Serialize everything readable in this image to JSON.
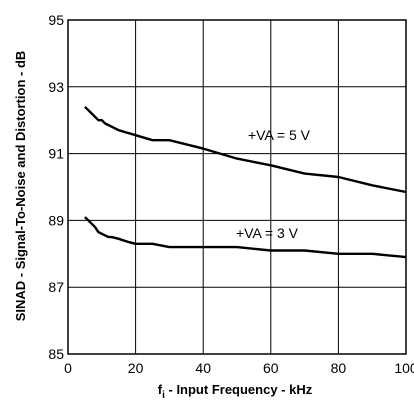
{
  "chart_data": {
    "type": "line",
    "xlabel": {
      "prefix": "f",
      "subscript": "i",
      "suffix": " - Input Frequency - kHz"
    },
    "ylabel": "SINAD - Signal-To-Noise and Distortion - dB",
    "xlim": [
      0,
      100
    ],
    "ylim": [
      85,
      95
    ],
    "x_ticks": [
      0,
      20,
      40,
      60,
      80,
      100
    ],
    "y_ticks": [
      85,
      87,
      89,
      91,
      93,
      95
    ],
    "grid": true,
    "series": [
      {
        "name": "+VA = 5 V",
        "x": [
          5,
          7,
          9,
          10,
          11,
          15,
          20,
          25,
          30,
          40,
          50,
          60,
          70,
          80,
          90,
          100
        ],
        "y": [
          92.4,
          92.2,
          92.0,
          92.0,
          91.9,
          91.7,
          91.55,
          91.4,
          91.4,
          91.15,
          90.85,
          90.65,
          90.4,
          90.3,
          90.05,
          89.85
        ]
      },
      {
        "name": "+VA = 3 V",
        "x": [
          5,
          6,
          7,
          8,
          9,
          10,
          11,
          12,
          13,
          15,
          18,
          20,
          25,
          30,
          40,
          50,
          60,
          70,
          80,
          90,
          100
        ],
        "y": [
          89.1,
          89.0,
          88.9,
          88.8,
          88.65,
          88.6,
          88.55,
          88.5,
          88.5,
          88.45,
          88.35,
          88.3,
          88.3,
          88.2,
          88.2,
          88.2,
          88.1,
          88.1,
          88.0,
          88.0,
          87.9
        ]
      }
    ]
  }
}
